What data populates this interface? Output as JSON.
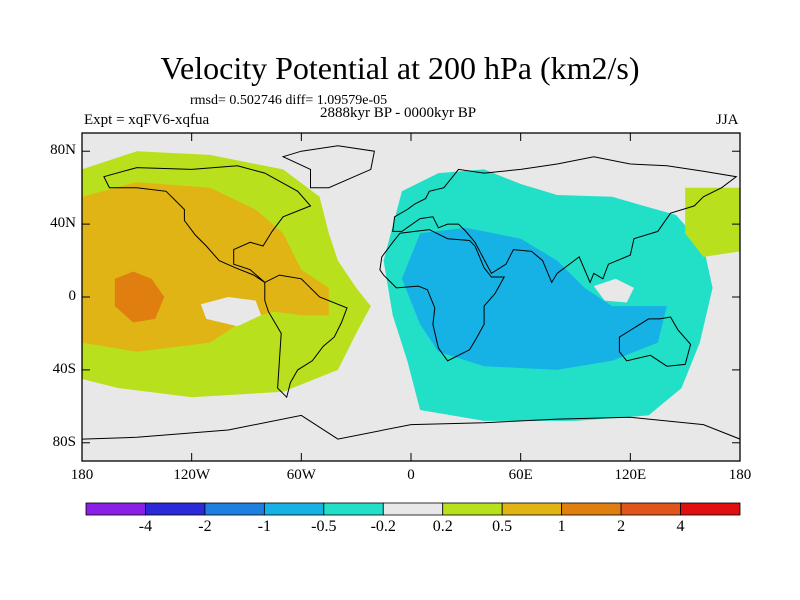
{
  "chart_data": {
    "type": "heatmap",
    "title": "Velocity Potential at 200 hPa (km2/s)",
    "stats_line": "rmsd= 0.502746  diff= 1.09579e-05",
    "period": "2888kyr BP - 0000kyr BP",
    "left_label": "Expt = xqFV6-xqfua",
    "right_label": "JJA",
    "x_ticks": [
      "180",
      "120W",
      "60W",
      "0",
      "60E",
      "120E",
      "180"
    ],
    "y_ticks": [
      "80N",
      "40N",
      "0",
      "40S",
      "80S"
    ],
    "xlim": [
      -180,
      180
    ],
    "ylim": [
      -90,
      90
    ],
    "colorbar": {
      "levels": [
        -4,
        -2,
        -1,
        -0.5,
        -0.2,
        0.2,
        0.5,
        1,
        2,
        4
      ],
      "labels": [
        "-4",
        "-2",
        "-1",
        "-0.5",
        "-0.2",
        "0.2",
        "0.5",
        "1",
        "2",
        "4"
      ],
      "colors": [
        "#8a1fe6",
        "#2a2ad8",
        "#1e7fe0",
        "#16b2e6",
        "#22e0c8",
        "#e8e8e8",
        "#b8e01c",
        "#e0b414",
        "#e07f10",
        "#e0561a",
        "#e01010"
      ]
    },
    "regions": [
      {
        "name": "pacific-positive-0.2-0.5",
        "class_index": 6
      },
      {
        "name": "pacific-positive-0.5-1",
        "class_index": 7
      },
      {
        "name": "pacific-positive-1-2",
        "class_index": 8
      },
      {
        "name": "indian-negative-0.2-0.5",
        "class_index": 4
      },
      {
        "name": "indian-negative-0.5-1",
        "class_index": 3
      },
      {
        "name": "west-pacific-positive-0.2-0.5",
        "class_index": 6
      }
    ]
  }
}
